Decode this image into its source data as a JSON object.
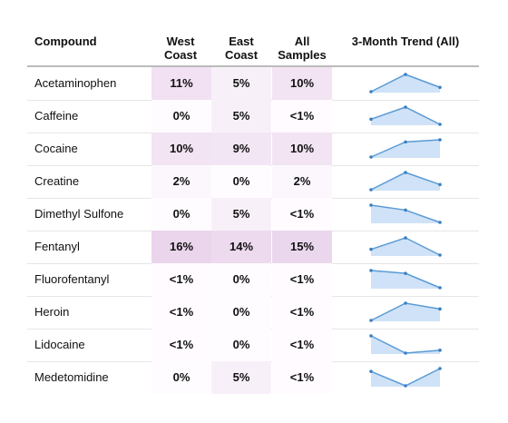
{
  "table": {
    "columns": [
      "Compound",
      "West Coast",
      "East Coast",
      "All Samples",
      "3-Month Trend (All)"
    ],
    "rows": [
      {
        "compound": "Acetaminophen",
        "west": "11%",
        "east": "5%",
        "all": "10%",
        "trend": [
          8,
          12,
          9
        ]
      },
      {
        "compound": "Caffeine",
        "west": "0%",
        "east": "5%",
        "all": "<1%",
        "trend": [
          0.5,
          1.2,
          0.2
        ]
      },
      {
        "compound": "Cocaine",
        "west": "10%",
        "east": "9%",
        "all": "10%",
        "trend": [
          7,
          10.5,
          11
        ]
      },
      {
        "compound": "Creatine",
        "west": "2%",
        "east": "0%",
        "all": "2%",
        "trend": [
          1.5,
          2.5,
          1.8
        ]
      },
      {
        "compound": "Dimethyl Sulfone",
        "west": "0%",
        "east": "5%",
        "all": "<1%",
        "trend": [
          1.0,
          0.8,
          0.3
        ]
      },
      {
        "compound": "Fentanyl",
        "west": "16%",
        "east": "14%",
        "all": "15%",
        "trend": [
          15,
          17,
          14
        ]
      },
      {
        "compound": "Fluorofentanyl",
        "west": "<1%",
        "east": "0%",
        "all": "<1%",
        "trend": [
          0.8,
          0.7,
          0.2
        ]
      },
      {
        "compound": "Heroin",
        "west": "<1%",
        "east": "0%",
        "all": "<1%",
        "trend": [
          0.2,
          0.8,
          0.6
        ]
      },
      {
        "compound": "Lidocaine",
        "west": "<1%",
        "east": "0%",
        "all": "<1%",
        "trend": [
          0.8,
          0.2,
          0.3
        ]
      },
      {
        "compound": "Medetomidine",
        "west": "0%",
        "east": "5%",
        "all": "<1%",
        "trend": [
          0.6,
          0.1,
          0.7
        ]
      }
    ]
  }
}
